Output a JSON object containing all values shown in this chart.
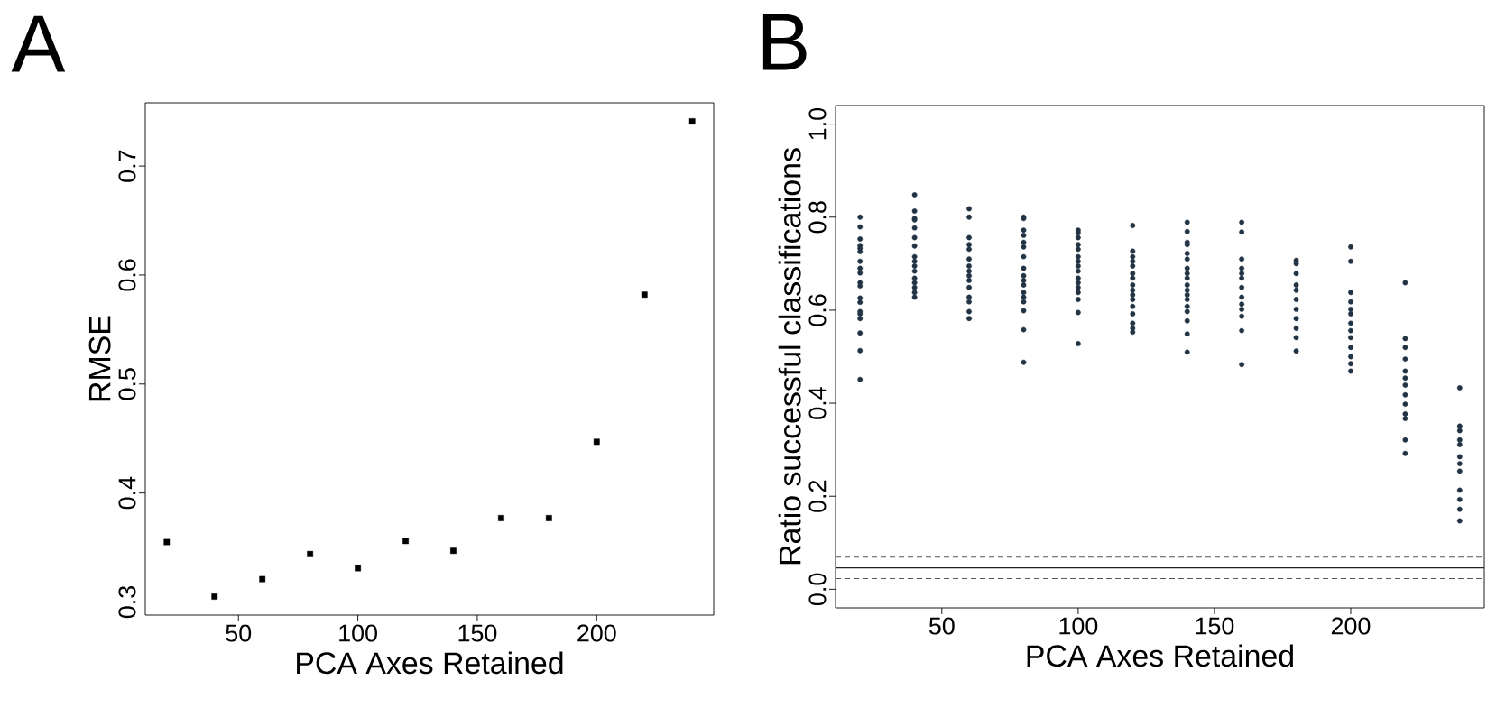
{
  "chart_data": [
    {
      "type": "scatter",
      "title": "A",
      "xlabel": "PCA Axes Retained",
      "ylabel": "RMSE",
      "marker": "square",
      "xlim": [
        11,
        249
      ],
      "ylim": [
        0.288,
        0.758
      ],
      "xticks": [
        50,
        100,
        150,
        200
      ],
      "yticks": [
        0.3,
        0.4,
        0.5,
        0.6,
        0.7
      ],
      "x": [
        20,
        40,
        60,
        80,
        100,
        120,
        140,
        160,
        180,
        200,
        220,
        240
      ],
      "series": [
        {
          "color": "#000000",
          "values": [
            0.355,
            0.305,
            0.321,
            0.344,
            0.331,
            0.356,
            0.347,
            0.377,
            0.377,
            0.447,
            0.582,
            0.741
          ]
        }
      ]
    },
    {
      "type": "scatter",
      "title": "B",
      "xlabel": "PCA Axes Retained",
      "ylabel": "Ratio successful classifications",
      "marker": "circle",
      "xlim": [
        11,
        249
      ],
      "ylim": [
        -0.04,
        1.04
      ],
      "xticks": [
        50,
        100,
        150,
        200
      ],
      "yticks": [
        {
          "value": 0,
          "label": "0.0"
        },
        0.2,
        0.4,
        0.6,
        0.8,
        {
          "value": 1,
          "label": "1.0"
        }
      ],
      "ref_lines": [
        {
          "axis": "y",
          "value": 0.046,
          "color": "#222222",
          "line_style": "solid"
        },
        {
          "axis": "y",
          "value": 0.069,
          "color": "#555555",
          "line_style": "dashed"
        },
        {
          "axis": "y",
          "value": 0.023,
          "color": "#555555",
          "line_style": "dashed"
        }
      ],
      "series": [
        {
          "color": "#223344",
          "x": [
            20,
            20,
            20,
            20,
            20,
            20,
            20,
            20,
            20,
            20,
            20,
            20,
            20,
            20,
            20,
            20,
            20,
            20,
            20,
            40,
            40,
            40,
            40,
            40,
            40,
            40,
            40,
            40,
            40,
            40,
            40,
            40,
            40,
            40,
            40,
            60,
            60,
            60,
            60,
            60,
            60,
            60,
            60,
            60,
            60,
            60,
            60,
            60,
            60,
            60,
            80,
            80,
            80,
            80,
            80,
            80,
            80,
            80,
            80,
            80,
            80,
            80,
            80,
            80,
            80,
            80,
            80,
            100,
            100,
            100,
            100,
            100,
            100,
            100,
            100,
            100,
            100,
            100,
            100,
            100,
            100,
            100,
            100,
            120,
            120,
            120,
            120,
            120,
            120,
            120,
            120,
            120,
            120,
            120,
            120,
            120,
            120,
            120,
            120,
            140,
            140,
            140,
            140,
            140,
            140,
            140,
            140,
            140,
            140,
            140,
            140,
            140,
            140,
            140,
            140,
            140,
            140,
            160,
            160,
            160,
            160,
            160,
            160,
            160,
            160,
            160,
            160,
            160,
            160,
            160,
            180,
            180,
            180,
            180,
            180,
            180,
            180,
            180,
            180,
            180,
            180,
            200,
            200,
            200,
            200,
            200,
            200,
            200,
            200,
            200,
            200,
            200,
            200,
            200,
            220,
            220,
            220,
            220,
            220,
            220,
            220,
            220,
            220,
            220,
            220,
            220,
            220,
            240,
            240,
            240,
            240,
            240,
            240,
            240,
            240,
            240,
            240,
            240,
            240
          ],
          "values": [
            0.8,
            0.779,
            0.753,
            0.739,
            0.733,
            0.726,
            0.705,
            0.69,
            0.68,
            0.659,
            0.652,
            0.626,
            0.617,
            0.597,
            0.592,
            0.582,
            0.551,
            0.513,
            0.451,
            0.848,
            0.813,
            0.797,
            0.794,
            0.777,
            0.756,
            0.738,
            0.715,
            0.705,
            0.695,
            0.684,
            0.669,
            0.659,
            0.649,
            0.638,
            0.628,
            0.818,
            0.8,
            0.756,
            0.741,
            0.731,
            0.71,
            0.695,
            0.684,
            0.674,
            0.664,
            0.649,
            0.628,
            0.618,
            0.597,
            0.582,
            0.8,
            0.797,
            0.772,
            0.761,
            0.746,
            0.736,
            0.715,
            0.69,
            0.674,
            0.664,
            0.654,
            0.638,
            0.628,
            0.618,
            0.599,
            0.558,
            0.488,
            0.772,
            0.766,
            0.756,
            0.741,
            0.731,
            0.715,
            0.705,
            0.695,
            0.684,
            0.669,
            0.659,
            0.649,
            0.638,
            0.623,
            0.595,
            0.528,
            0.782,
            0.727,
            0.715,
            0.705,
            0.695,
            0.679,
            0.669,
            0.654,
            0.643,
            0.633,
            0.623,
            0.608,
            0.592,
            0.572,
            0.561,
            0.553,
            0.789,
            0.769,
            0.746,
            0.741,
            0.722,
            0.71,
            0.69,
            0.679,
            0.669,
            0.654,
            0.643,
            0.633,
            0.623,
            0.608,
            0.597,
            0.577,
            0.549,
            0.51,
            0.789,
            0.768,
            0.71,
            0.69,
            0.679,
            0.669,
            0.649,
            0.628,
            0.613,
            0.602,
            0.587,
            0.556,
            0.483,
            0.707,
            0.7,
            0.679,
            0.654,
            0.643,
            0.623,
            0.602,
            0.582,
            0.561,
            0.541,
            0.512,
            0.736,
            0.705,
            0.638,
            0.618,
            0.602,
            0.592,
            0.572,
            0.556,
            0.541,
            0.52,
            0.5,
            0.485,
            0.469,
            0.659,
            0.539,
            0.52,
            0.495,
            0.469,
            0.454,
            0.439,
            0.418,
            0.398,
            0.377,
            0.367,
            0.321,
            0.292,
            0.433,
            0.351,
            0.341,
            0.321,
            0.311,
            0.285,
            0.27,
            0.254,
            0.213,
            0.193,
            0.172,
            0.147
          ]
        }
      ]
    }
  ]
}
